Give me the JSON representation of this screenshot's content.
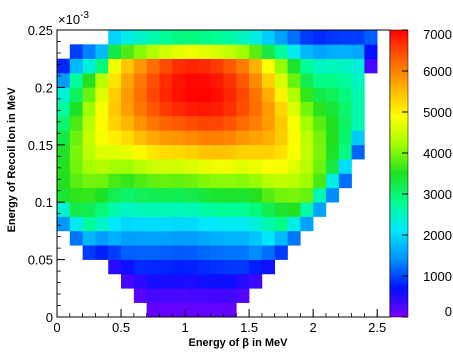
{
  "chart_data": {
    "type": "heatmap",
    "title": "",
    "xlabel": "Energy of β in MeV",
    "ylabel": "Energy of Recoil Ion in MeV",
    "y_exponent_label": "×10",
    "y_exponent_power": "-3",
    "xlim": [
      0,
      2.6
    ],
    "ylim": [
      0,
      0.25
    ],
    "x_ticks": [
      0,
      0.5,
      1,
      1.5,
      2,
      2.5
    ],
    "x_tick_labels": [
      "0",
      "0.5",
      "1",
      "1.5",
      "2",
      "2.5"
    ],
    "y_ticks": [
      0,
      0.05,
      0.1,
      0.15,
      0.2,
      0.25
    ],
    "y_tick_labels": [
      "0",
      "0.05",
      "0.1",
      "0.15",
      "0.2",
      "0.25"
    ],
    "z_range": [
      0,
      7000
    ],
    "z_ticks": [
      0,
      1000,
      2000,
      3000,
      4000,
      5000,
      6000,
      7000
    ],
    "z_tick_labels": [
      "0",
      "1000",
      "2000",
      "3000",
      "4000",
      "5000",
      "6000",
      "7000"
    ],
    "colormap": [
      "#7a00ff",
      "#0010ff",
      "#0090ff",
      "#00e8ff",
      "#00ff90",
      "#20e020",
      "#a0ff00",
      "#ffff00",
      "#ffb000",
      "#ff6000",
      "#ff0000"
    ],
    "x_bin_width": 0.1,
    "y_bin_width": 0.0125,
    "y_bin_count": 20,
    "columns": [
      {
        "x_start": 0.0,
        "y_start_bin": 6,
        "y_end_bin": 17
      },
      {
        "x_start": 0.1,
        "y_start_bin": 5,
        "y_end_bin": 18
      },
      {
        "x_start": 0.2,
        "y_start_bin": 4,
        "y_end_bin": 18
      },
      {
        "x_start": 0.3,
        "y_start_bin": 4,
        "y_end_bin": 18
      },
      {
        "x_start": 0.4,
        "y_start_bin": 3,
        "y_end_bin": 19
      },
      {
        "x_start": 0.5,
        "y_start_bin": 2,
        "y_end_bin": 19
      },
      {
        "x_start": 0.6,
        "y_start_bin": 1,
        "y_end_bin": 19
      },
      {
        "x_start": 0.7,
        "y_start_bin": 0,
        "y_end_bin": 19
      },
      {
        "x_start": 0.8,
        "y_start_bin": 0,
        "y_end_bin": 19
      },
      {
        "x_start": 0.9,
        "y_start_bin": 0,
        "y_end_bin": 19
      },
      {
        "x_start": 1.0,
        "y_start_bin": 0,
        "y_end_bin": 19
      },
      {
        "x_start": 1.1,
        "y_start_bin": 0,
        "y_end_bin": 19
      },
      {
        "x_start": 1.2,
        "y_start_bin": 0,
        "y_end_bin": 19
      },
      {
        "x_start": 1.3,
        "y_start_bin": 0,
        "y_end_bin": 19
      },
      {
        "x_start": 1.4,
        "y_start_bin": 1,
        "y_end_bin": 19
      },
      {
        "x_start": 1.5,
        "y_start_bin": 2,
        "y_end_bin": 19
      },
      {
        "x_start": 1.6,
        "y_start_bin": 3,
        "y_end_bin": 19
      },
      {
        "x_start": 1.7,
        "y_start_bin": 4,
        "y_end_bin": 19
      },
      {
        "x_start": 1.8,
        "y_start_bin": 5,
        "y_end_bin": 19
      },
      {
        "x_start": 1.9,
        "y_start_bin": 6,
        "y_end_bin": 19
      },
      {
        "x_start": 2.0,
        "y_start_bin": 7,
        "y_end_bin": 19
      },
      {
        "x_start": 2.1,
        "y_start_bin": 8,
        "y_end_bin": 19
      },
      {
        "x_start": 2.2,
        "y_start_bin": 9,
        "y_end_bin": 19
      },
      {
        "x_start": 2.3,
        "y_start_bin": 11,
        "y_end_bin": 19
      },
      {
        "x_start": 2.4,
        "y_start_bin": 17,
        "y_end_bin": 19
      }
    ]
  }
}
